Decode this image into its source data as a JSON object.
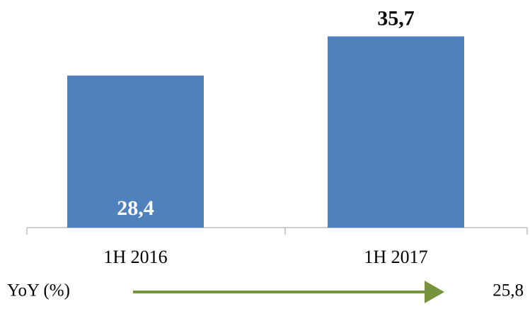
{
  "chart_data": {
    "type": "bar",
    "categories": [
      "1H 2016",
      "1H 2017"
    ],
    "values": [
      28.4,
      35.7
    ],
    "value_labels": [
      "28,4",
      "35,7"
    ],
    "color": "#4f81bd",
    "ylim": [
      0,
      42.5
    ],
    "annotations": [
      "YoY (%)",
      "25,8"
    ]
  }
}
